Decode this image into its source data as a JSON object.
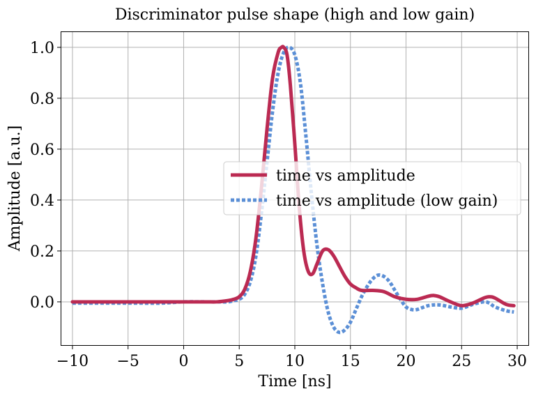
{
  "chart_data": {
    "type": "line",
    "title": "Discriminator pulse shape (high and low gain)",
    "xlabel": "Time [ns]",
    "ylabel": "Amplitude [a.u.]",
    "xlim": [
      -11.0,
      31.0
    ],
    "ylim": [
      -0.17,
      1.06
    ],
    "xticks": [
      -10,
      -5,
      0,
      5,
      10,
      15,
      20,
      25,
      30
    ],
    "xtick_labels": [
      "−10",
      "−5",
      "0",
      "5",
      "10",
      "15",
      "20",
      "25",
      "30"
    ],
    "yticks": [
      0.0,
      0.2,
      0.4,
      0.6,
      0.8,
      1.0
    ],
    "ytick_labels": [
      "0.0",
      "0.2",
      "0.4",
      "0.6",
      "0.8",
      "1.0"
    ],
    "grid": true,
    "legend_position": "center-right",
    "series": [
      {
        "name": "time vs amplitude",
        "color": "#bb2a52",
        "style": "solid",
        "x": [
          -10,
          -8,
          -6,
          -4,
          -2,
          0,
          2,
          3,
          4,
          4.5,
          5,
          5.5,
          6,
          6.5,
          7,
          7.5,
          8,
          8.5,
          8.8,
          9.0,
          9.3,
          9.6,
          10.0,
          10.4,
          10.8,
          11.2,
          11.6,
          12.0,
          12.5,
          13.0,
          13.5,
          14.0,
          14.5,
          15.0,
          15.5,
          16.0,
          17.0,
          18.0,
          19.0,
          20.0,
          21.0,
          22.0,
          22.5,
          23.0,
          24.0,
          25.0,
          26.0,
          27.0,
          27.5,
          28.0,
          29.0,
          29.7
        ],
        "y": [
          0.0,
          0.0,
          0.0,
          0.0,
          0.0,
          0.0,
          0.0,
          0.0,
          0.005,
          0.01,
          0.02,
          0.05,
          0.12,
          0.25,
          0.45,
          0.68,
          0.88,
          0.98,
          1.0,
          1.0,
          0.97,
          0.85,
          0.62,
          0.37,
          0.2,
          0.12,
          0.11,
          0.15,
          0.2,
          0.205,
          0.18,
          0.14,
          0.1,
          0.07,
          0.055,
          0.045,
          0.045,
          0.04,
          0.02,
          0.01,
          0.01,
          0.022,
          0.025,
          0.02,
          0.0,
          -0.015,
          -0.005,
          0.015,
          0.02,
          0.015,
          -0.01,
          -0.015
        ]
      },
      {
        "name": "time vs amplitude (low gain)",
        "color": "#5b8fd6",
        "style": "dotted",
        "x": [
          -10,
          -8,
          -6,
          -4,
          -2,
          0,
          2,
          3,
          4,
          4.5,
          5,
          5.5,
          6,
          6.5,
          7,
          7.5,
          8,
          8.5,
          9.0,
          9.5,
          10.0,
          10.5,
          11.0,
          11.5,
          12.0,
          12.5,
          13.0,
          13.5,
          14.0,
          14.5,
          15.0,
          15.5,
          16.0,
          16.5,
          17.0,
          17.5,
          18.0,
          18.5,
          19.0,
          19.5,
          20.0,
          20.5,
          21.0,
          22.0,
          23.0,
          24.0,
          25.0,
          26.0,
          27.0,
          27.5,
          28.0,
          29.0,
          29.7
        ],
        "y": [
          -0.005,
          -0.005,
          -0.005,
          -0.005,
          -0.005,
          0.0,
          0.0,
          0.0,
          0.0,
          0.005,
          0.01,
          0.03,
          0.08,
          0.18,
          0.35,
          0.55,
          0.75,
          0.9,
          0.98,
          1.0,
          0.97,
          0.86,
          0.65,
          0.42,
          0.22,
          0.07,
          -0.04,
          -0.1,
          -0.12,
          -0.11,
          -0.08,
          -0.03,
          0.02,
          0.06,
          0.09,
          0.105,
          0.1,
          0.08,
          0.045,
          0.01,
          -0.02,
          -0.03,
          -0.03,
          -0.015,
          -0.012,
          -0.02,
          -0.025,
          -0.01,
          0.0,
          -0.005,
          -0.02,
          -0.035,
          -0.04
        ]
      }
    ]
  }
}
